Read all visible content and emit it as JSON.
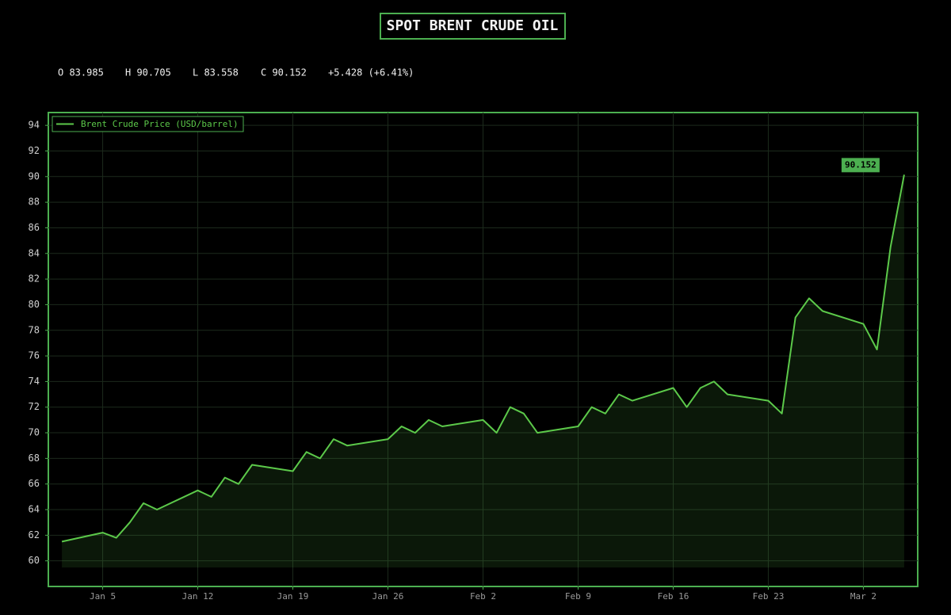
{
  "chart_data": {
    "type": "line",
    "title": "SPOT BRENT CRUDE OIL",
    "ohlc": [
      "O 83.985",
      "H 90.705",
      "L 83.558",
      "C 90.152",
      "+5.428 (+6.41%)"
    ],
    "x": [
      "Jan 2",
      "Jan 5",
      "Jan 6",
      "Jan 7",
      "Jan 8",
      "Jan 9",
      "Jan 12",
      "Jan 13",
      "Jan 14",
      "Jan 15",
      "Jan 16",
      "Jan 19",
      "Jan 20",
      "Jan 21",
      "Jan 22",
      "Jan 23",
      "Jan 26",
      "Jan 27",
      "Jan 28",
      "Jan 29",
      "Jan 30",
      "Feb 2",
      "Feb 3",
      "Feb 4",
      "Feb 5",
      "Feb 6",
      "Feb 9",
      "Feb 10",
      "Feb 11",
      "Feb 12",
      "Feb 13",
      "Feb 16",
      "Feb 17",
      "Feb 18",
      "Feb 19",
      "Feb 20",
      "Feb 23",
      "Feb 24",
      "Feb 25",
      "Feb 26",
      "Feb 27",
      "Mar 2",
      "Mar 3",
      "Mar 4",
      "Mar 5"
    ],
    "series": [
      {
        "name": "Brent Crude Price (USD/barrel)",
        "color": "#5cc94a",
        "values": [
          61.5,
          62.2,
          61.8,
          63,
          64.5,
          64,
          65.5,
          65,
          66.5,
          66,
          67.5,
          67,
          68.5,
          68,
          69.5,
          69,
          69.5,
          70.5,
          70,
          71,
          70.5,
          71,
          70,
          72,
          71.5,
          70,
          70.5,
          72,
          71.5,
          73,
          72.5,
          73.5,
          72,
          73.5,
          74,
          73,
          72.5,
          71.5,
          79,
          80.5,
          79.5,
          78.5,
          76.5,
          84.5,
          90.152
        ]
      }
    ],
    "xlim": [
      "Jan 1",
      "Mar 6"
    ],
    "xticks": [
      "Jan 5",
      "Jan 12",
      "Jan 19",
      "Jan 26",
      "Feb 2",
      "Feb 9",
      "Feb 16",
      "Feb 23",
      "Mar 2"
    ],
    "ylim": [
      58,
      95
    ],
    "yticks": [
      60,
      62,
      64,
      66,
      68,
      70,
      72,
      74,
      76,
      78,
      80,
      82,
      84,
      86,
      88,
      90,
      92,
      94
    ],
    "grid": true,
    "legend": "upper left"
  }
}
